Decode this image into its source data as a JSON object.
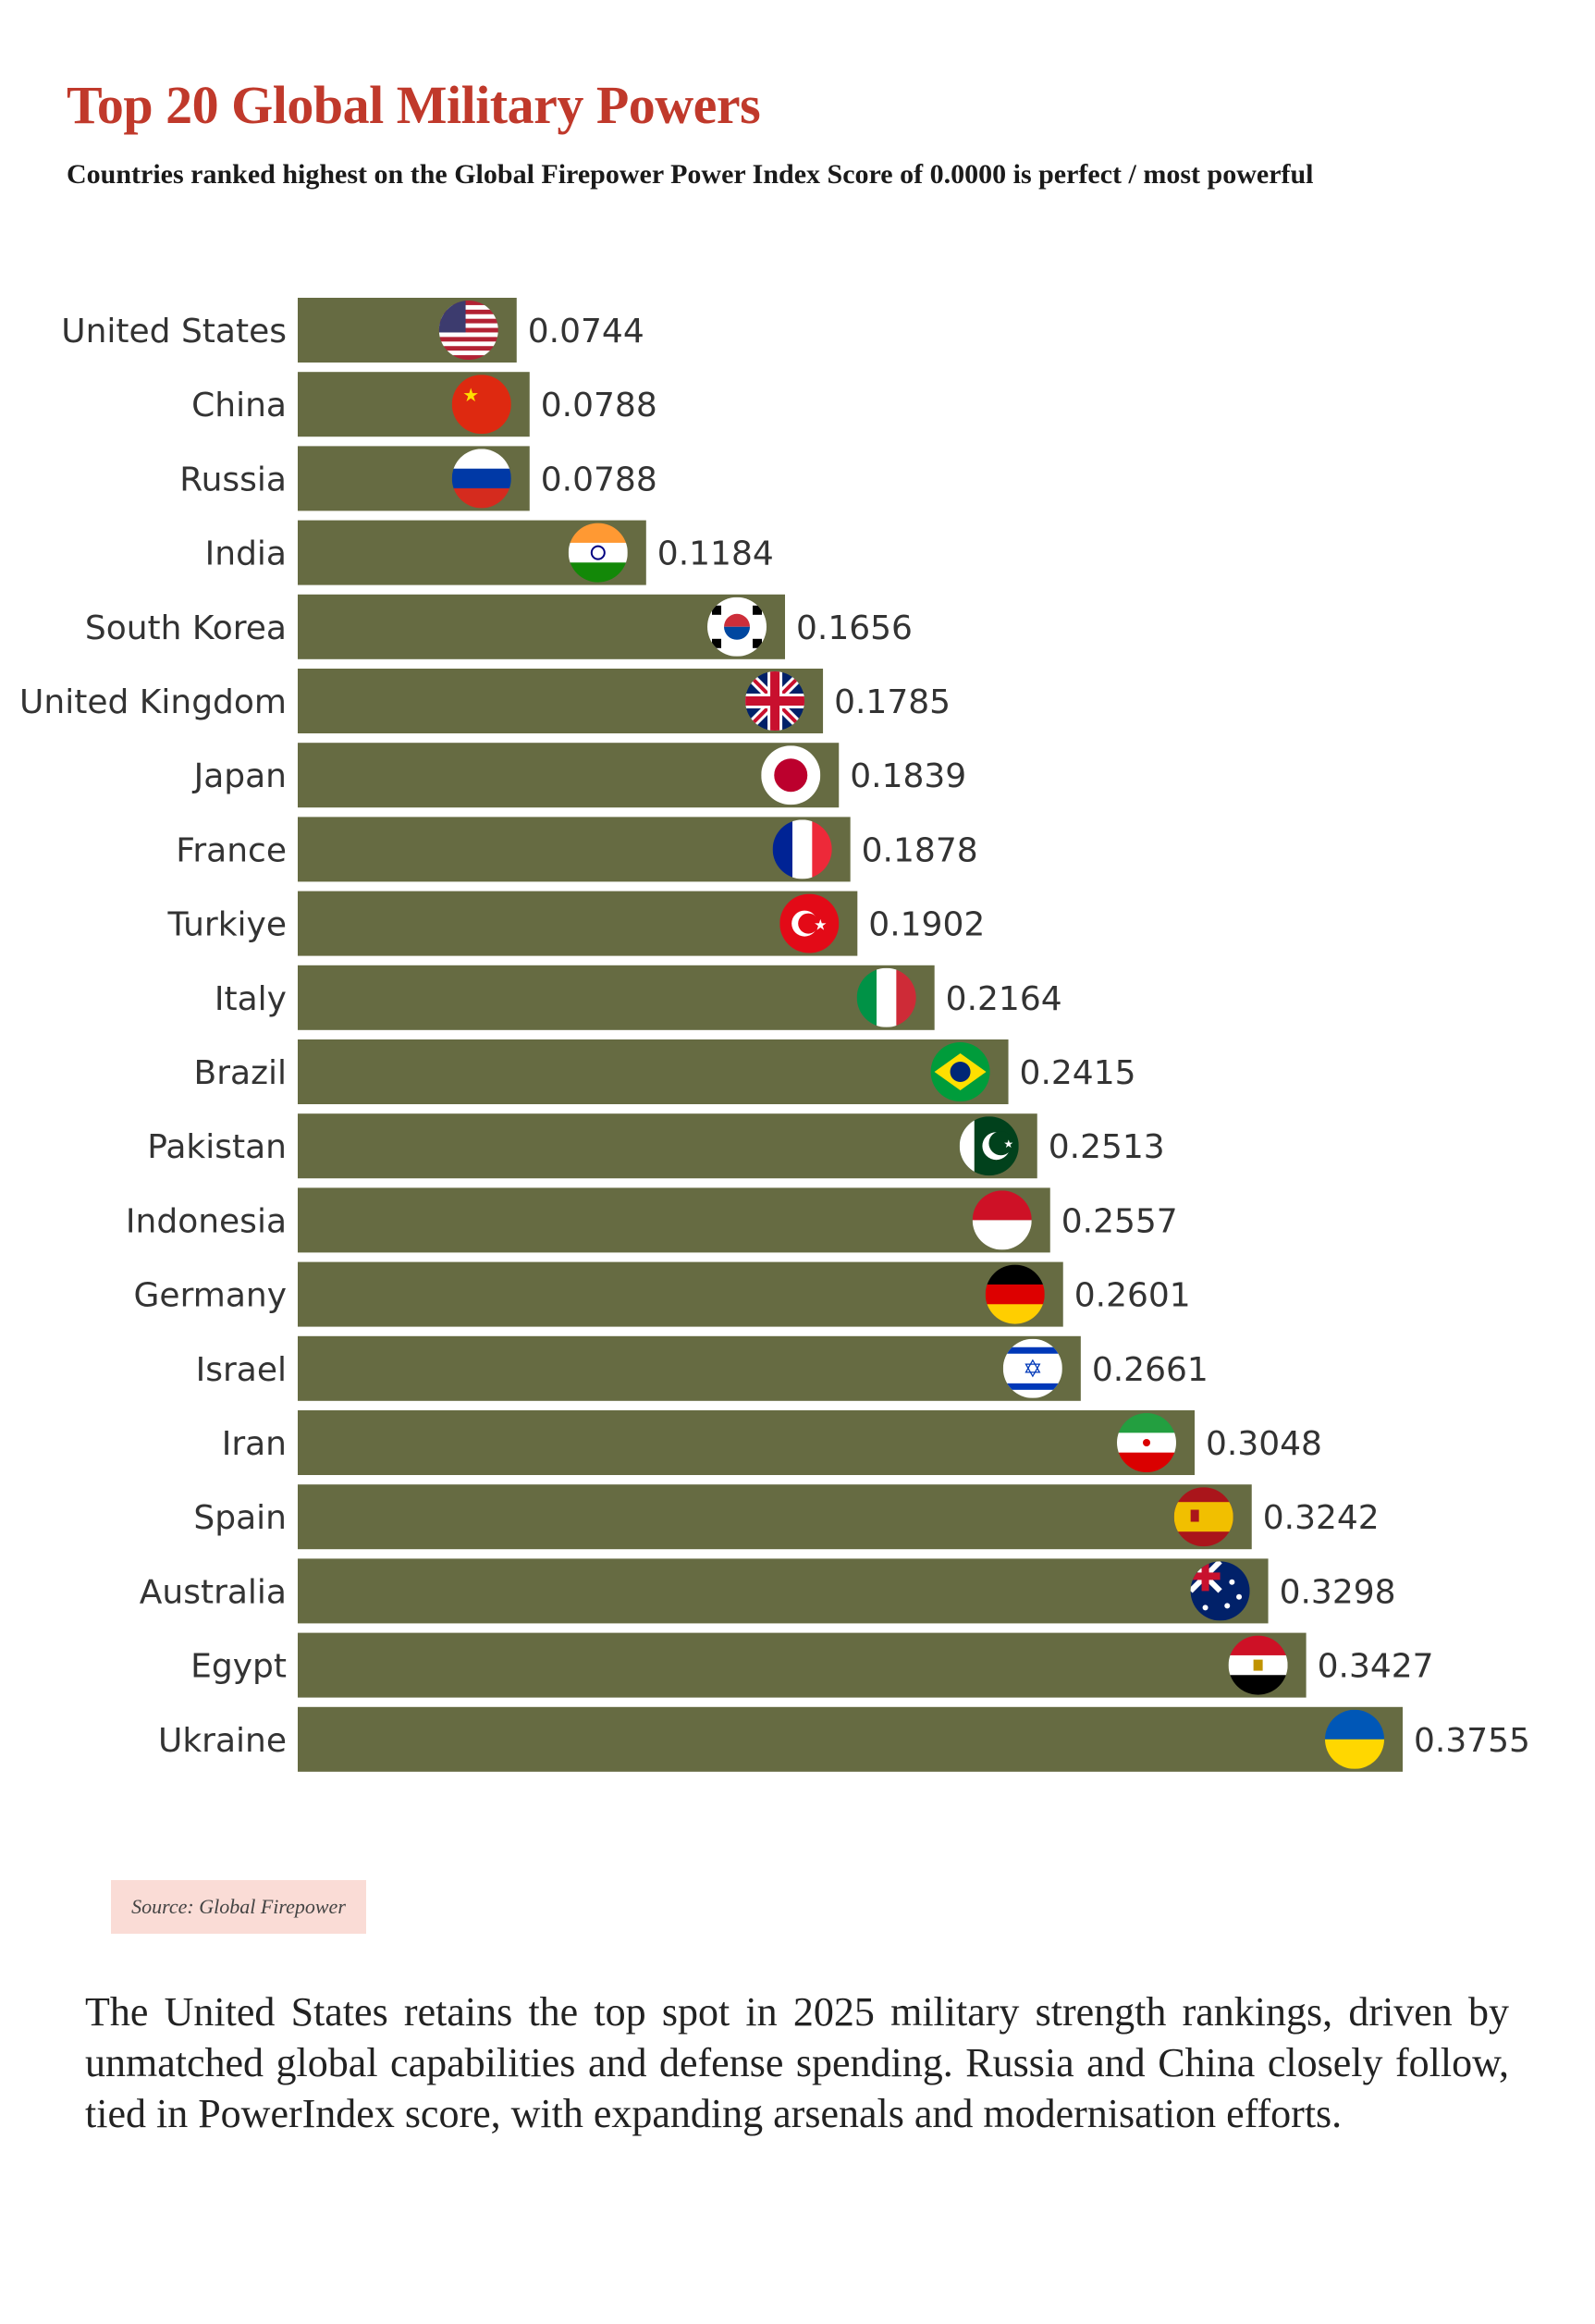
{
  "title": "Top 20 Global Military Powers",
  "subtitle": "Countries ranked highest on the Global Firepower Power Index Score of 0.0000 is perfect / most powerful",
  "source": "Source: Global Firepower",
  "body_text": "The United States retains the top spot in 2025 military strength rankings, driven by unmatched global capabilities and defense spending. Russia and China closely follow, tied in PowerIndex score, with expanding arsenals and modernisation efforts.",
  "colors": {
    "bar": "#666b42",
    "title": "#c0392b",
    "source_bg": "#fadcd6"
  },
  "chart_data": {
    "type": "bar",
    "orientation": "horizontal",
    "title": "Top 20 Global Military Powers",
    "xlabel": "",
    "ylabel": "",
    "xlim": [
      0,
      0.3755
    ],
    "categories": [
      "United States",
      "China",
      "Russia",
      "India",
      "South Korea",
      "United Kingdom",
      "Japan",
      "France",
      "Turkiye",
      "Italy",
      "Brazil",
      "Pakistan",
      "Indonesia",
      "Germany",
      "Israel",
      "Iran",
      "Spain",
      "Australia",
      "Egypt",
      "Ukraine"
    ],
    "values": [
      0.0744,
      0.0788,
      0.0788,
      0.1184,
      0.1656,
      0.1785,
      0.1839,
      0.1878,
      0.1902,
      0.2164,
      0.2415,
      0.2513,
      0.2557,
      0.2601,
      0.2661,
      0.3048,
      0.3242,
      0.3298,
      0.3427,
      0.3755
    ],
    "value_labels": [
      "0.0744",
      "0.0788",
      "0.0788",
      "0.1184",
      "0.1656",
      "0.1785",
      "0.1839",
      "0.1878",
      "0.1902",
      "0.2164",
      "0.2415",
      "0.2513",
      "0.2557",
      "0.2601",
      "0.2661",
      "0.3048",
      "0.3242",
      "0.3298",
      "0.3427",
      "0.3755"
    ],
    "flag_icons": [
      "us-flag-icon",
      "china-flag-icon",
      "russia-flag-icon",
      "india-flag-icon",
      "south-korea-flag-icon",
      "uk-flag-icon",
      "japan-flag-icon",
      "france-flag-icon",
      "turkiye-flag-icon",
      "italy-flag-icon",
      "brazil-flag-icon",
      "pakistan-flag-icon",
      "indonesia-flag-icon",
      "germany-flag-icon",
      "israel-flag-icon",
      "iran-flag-icon",
      "spain-flag-icon",
      "australia-flag-icon",
      "egypt-flag-icon",
      "ukraine-flag-icon"
    ]
  }
}
